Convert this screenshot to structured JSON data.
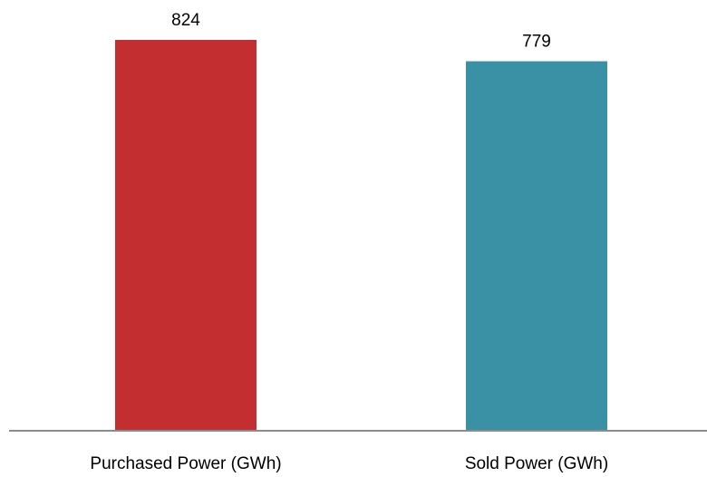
{
  "chart_data": {
    "type": "bar",
    "title": "",
    "xlabel": "",
    "ylabel": "",
    "categories": [
      "Purchased Power (GWh)",
      "Sold Power (GWh)"
    ],
    "values": [
      824,
      779
    ],
    "data_labels": [
      "824",
      "779"
    ],
    "colors": [
      "#c32e30",
      "#3a91a6"
    ],
    "axis_color": "#8c8c8c",
    "ylim": [
      0,
      824
    ],
    "grid": false,
    "legend": "none"
  }
}
